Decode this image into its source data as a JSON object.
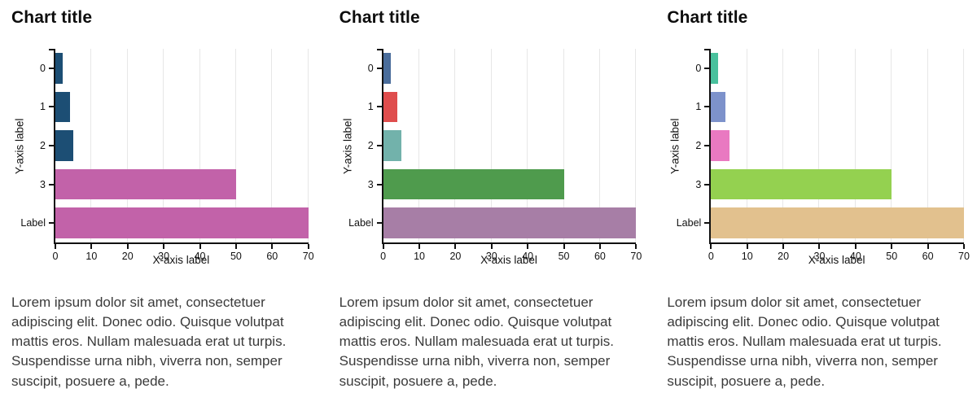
{
  "lorem_paragraph": "Lorem ipsum dolor sit amet, consectetuer adipiscing elit. Donec odio. Quisque volutpat mattis eros. Nullam malesuada erat ut turpis. Suspendisse urna nibh, viverra non, semper suscipit, posuere a, pede.",
  "axis_color": "#111111",
  "grid_color": "#e7e7e7",
  "chart_data": [
    {
      "type": "bar",
      "orientation": "horizontal",
      "title": "Chart title",
      "xlabel": "X-axis label",
      "ylabel": "Y-axis label",
      "categories": [
        "0",
        "1",
        "2",
        "3",
        "Label"
      ],
      "values": [
        2,
        4,
        5,
        50,
        70
      ],
      "xticks": [
        0,
        10,
        20,
        30,
        40,
        50,
        60,
        70
      ],
      "xlim": [
        0,
        70
      ],
      "grid": true,
      "legend": false,
      "bar_colors": [
        "#1c4e74",
        "#1c4e74",
        "#1c4e74",
        "#c262a9",
        "#c262a9"
      ]
    },
    {
      "type": "bar",
      "orientation": "horizontal",
      "title": "Chart title",
      "xlabel": "X-axis label",
      "ylabel": "Y-axis label",
      "categories": [
        "0",
        "1",
        "2",
        "3",
        "Label"
      ],
      "values": [
        2,
        4,
        5,
        50,
        70
      ],
      "xticks": [
        0,
        10,
        20,
        30,
        40,
        50,
        60,
        70
      ],
      "xlim": [
        0,
        70
      ],
      "grid": true,
      "legend": false,
      "bar_colors": [
        "#4a6d9b",
        "#df4d4d",
        "#72b2ab",
        "#4f9b4d",
        "#a77ea6"
      ]
    },
    {
      "type": "bar",
      "orientation": "horizontal",
      "title": "Chart title",
      "xlabel": "X-axis label",
      "ylabel": "Y-axis label",
      "categories": [
        "0",
        "1",
        "2",
        "3",
        "Label"
      ],
      "values": [
        2,
        4,
        5,
        50,
        70
      ],
      "xticks": [
        0,
        10,
        20,
        30,
        40,
        50,
        60,
        70
      ],
      "xlim": [
        0,
        70
      ],
      "grid": true,
      "legend": false,
      "bar_colors": [
        "#49c19d",
        "#7d92cb",
        "#e979c1",
        "#94d150",
        "#e2c18e"
      ]
    }
  ]
}
